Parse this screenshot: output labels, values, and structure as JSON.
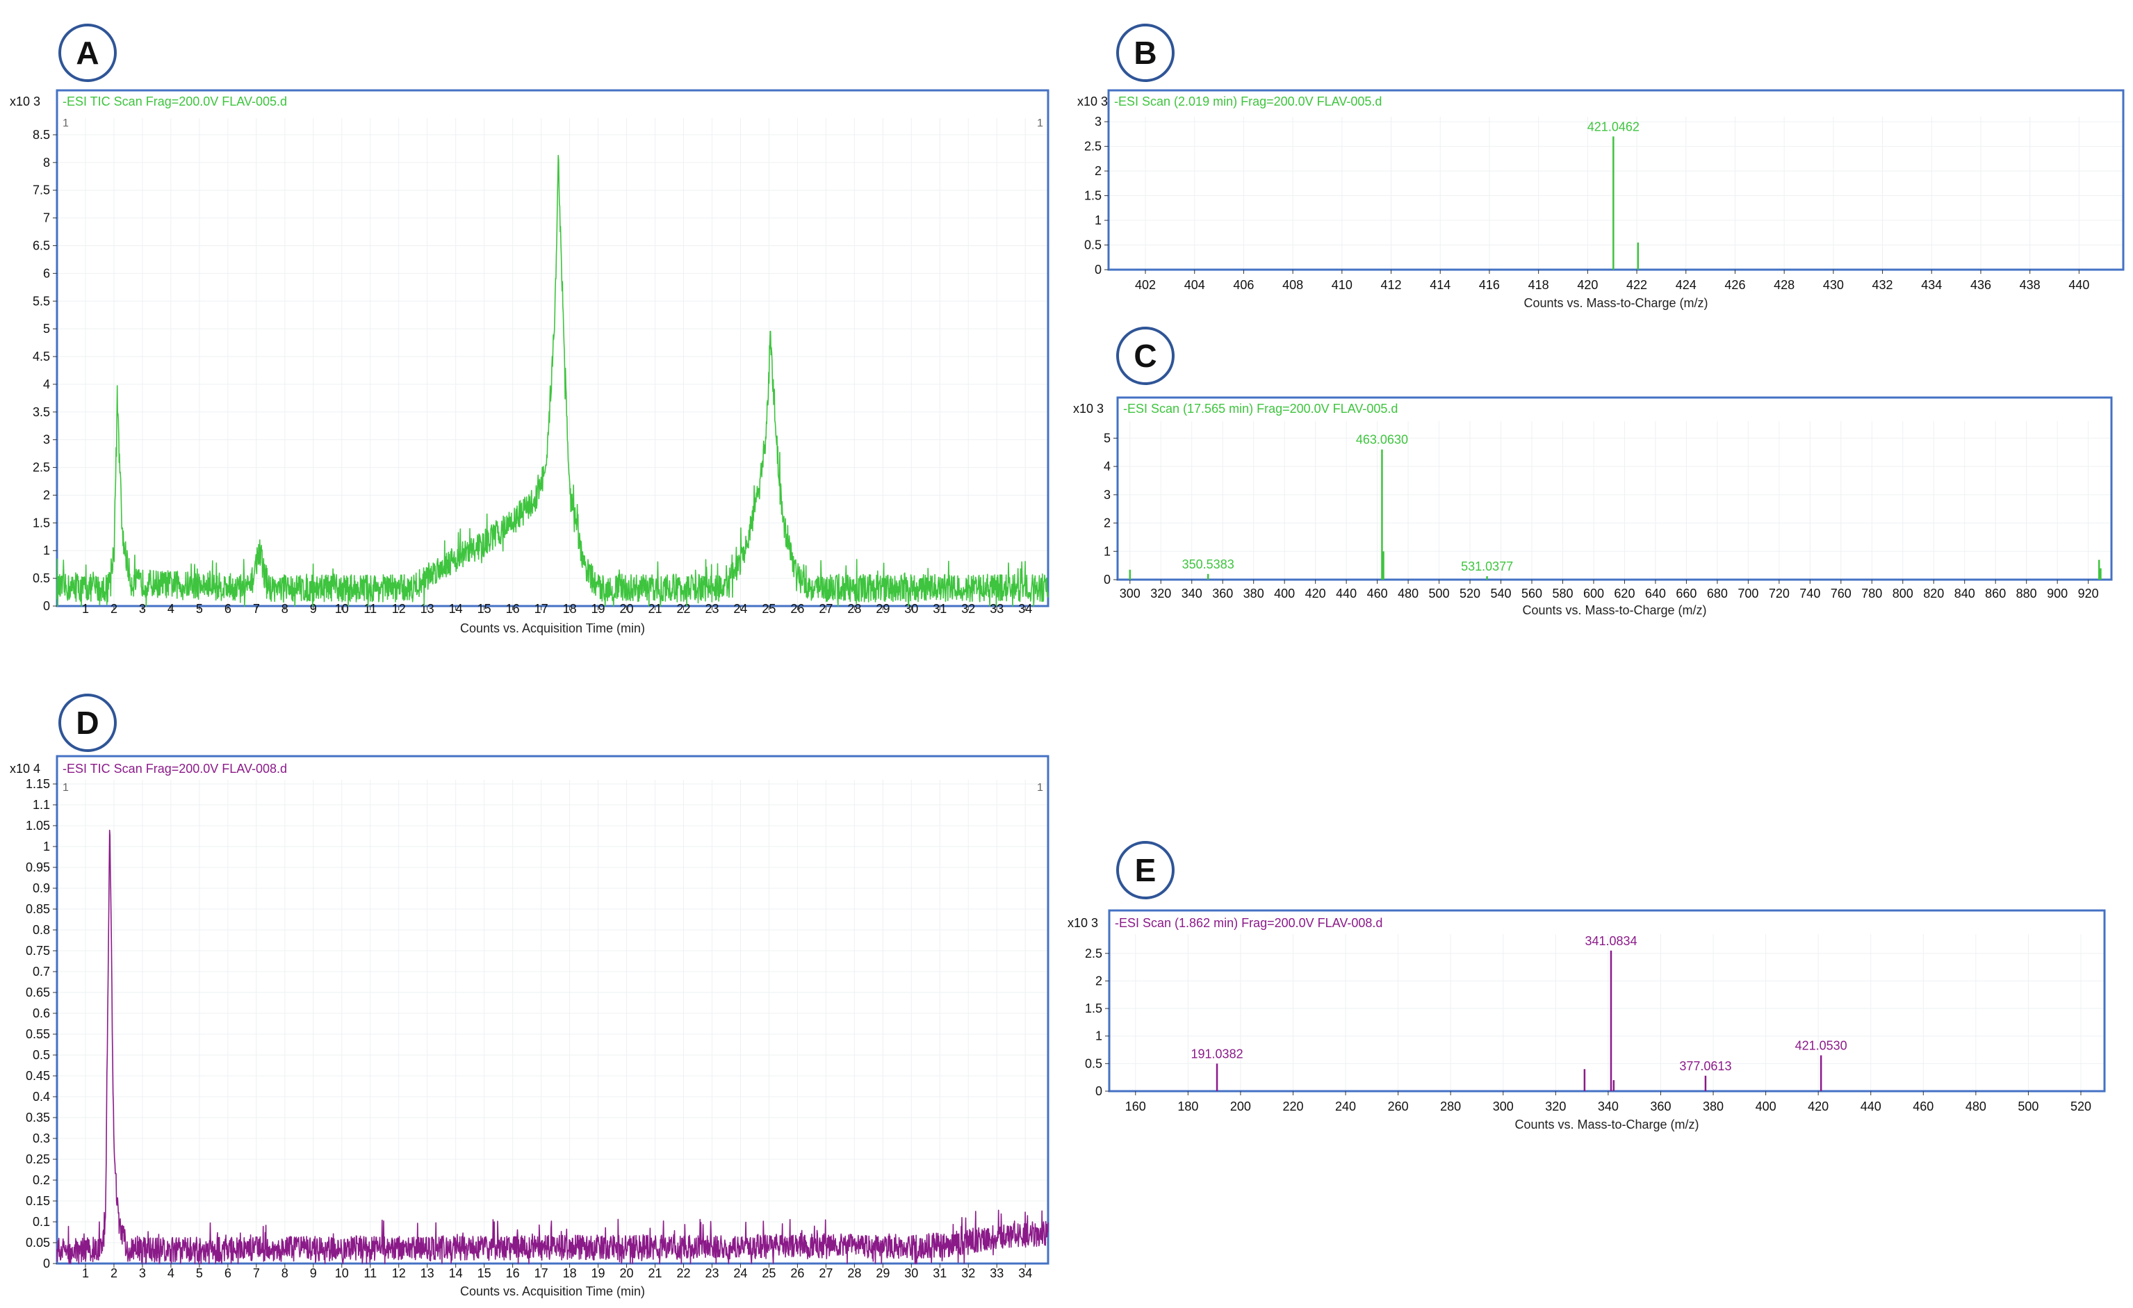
{
  "panels": [
    {
      "id": "A",
      "label": "A"
    },
    {
      "id": "B",
      "label": "B"
    },
    {
      "id": "C",
      "label": "C"
    },
    {
      "id": "D",
      "label": "D"
    },
    {
      "id": "E",
      "label": "E"
    }
  ],
  "colors": {
    "green": "#3ec43e",
    "purple": "#8b1a89",
    "frame": "#4472c4",
    "badge": "#2f5597"
  },
  "chart_data": [
    {
      "id": "A",
      "type": "line",
      "title": "-ESI TIC Scan Frag=200.0V FLAV-005.d",
      "multiplier": "x10 3",
      "corner_marks": [
        "1",
        "1"
      ],
      "xlabel": "Counts vs. Acquisition Time (min)",
      "xlim": [
        0,
        34.8
      ],
      "ylim": [
        0,
        8.8
      ],
      "xticks": [
        "1",
        "2",
        "3",
        "4",
        "5",
        "6",
        "7",
        "8",
        "9",
        "10",
        "11",
        "12",
        "13",
        "14",
        "15",
        "16",
        "17",
        "18",
        "19",
        "20",
        "21",
        "22",
        "23",
        "24",
        "25",
        "26",
        "27",
        "28",
        "29",
        "30",
        "31",
        "32",
        "33",
        "34"
      ],
      "yticks": [
        "0",
        "0.5",
        "1",
        "1.5",
        "2",
        "2.5",
        "3",
        "3.5",
        "4",
        "4.5",
        "5",
        "5.5",
        "6",
        "6.5",
        "7",
        "7.5",
        "8",
        "8.5"
      ],
      "noise": 0.25,
      "series": [
        {
          "color": "#3ec43e",
          "points": [
            [
              0,
              0.3
            ],
            [
              1.8,
              0.3
            ],
            [
              2.0,
              1.0
            ],
            [
              2.12,
              3.6
            ],
            [
              2.3,
              1.2
            ],
            [
              2.6,
              0.4
            ],
            [
              6.8,
              0.3
            ],
            [
              7.1,
              1.0
            ],
            [
              7.4,
              0.3
            ],
            [
              12.5,
              0.3
            ],
            [
              13.5,
              0.7
            ],
            [
              15,
              1.1
            ],
            [
              16,
              1.5
            ],
            [
              16.8,
              1.9
            ],
            [
              17.2,
              2.5
            ],
            [
              17.5,
              5.5
            ],
            [
              17.6,
              8.1
            ],
            [
              17.75,
              5.5
            ],
            [
              18.0,
              2.0
            ],
            [
              18.5,
              0.7
            ],
            [
              19,
              0.3
            ],
            [
              23.5,
              0.3
            ],
            [
              24.2,
              1.0
            ],
            [
              24.7,
              2.2
            ],
            [
              24.95,
              3.5
            ],
            [
              25.05,
              4.9
            ],
            [
              25.2,
              3.3
            ],
            [
              25.5,
              1.5
            ],
            [
              26,
              0.5
            ],
            [
              26.5,
              0.3
            ],
            [
              34.8,
              0.3
            ]
          ]
        }
      ]
    },
    {
      "id": "B",
      "type": "bar",
      "title": "-ESI Scan (2.019 min) Frag=200.0V FLAV-005.d",
      "multiplier": "x10 3",
      "xlabel": "Counts vs. Mass-to-Charge (m/z)",
      "xlim": [
        400.5,
        441.8
      ],
      "ylim": [
        0,
        3.1
      ],
      "xticks": [
        "402",
        "404",
        "406",
        "408",
        "410",
        "412",
        "414",
        "416",
        "418",
        "420",
        "422",
        "424",
        "426",
        "428",
        "430",
        "432",
        "434",
        "436",
        "438",
        "440"
      ],
      "yticks": [
        "0",
        "0.5",
        "1",
        "1.5",
        "2",
        "2.5",
        "3"
      ],
      "peaks": [
        {
          "x": 421.0462,
          "y": 2.7
        },
        {
          "x": 422.05,
          "y": 0.55
        }
      ],
      "labels": [
        {
          "x": 421.0462,
          "y": 2.7,
          "text": "421.0462"
        }
      ]
    },
    {
      "id": "C",
      "type": "bar",
      "title": "-ESI Scan (17.565 min) Frag=200.0V FLAV-005.d",
      "multiplier": "x10 3",
      "xlabel": "Counts vs. Mass-to-Charge (m/z)",
      "xlim": [
        292,
        935
      ],
      "ylim": [
        0,
        5.6
      ],
      "xticks": [
        "300",
        "320",
        "340",
        "360",
        "380",
        "400",
        "420",
        "440",
        "460",
        "480",
        "500",
        "520",
        "540",
        "560",
        "580",
        "600",
        "620",
        "640",
        "660",
        "680",
        "700",
        "720",
        "740",
        "760",
        "780",
        "800",
        "820",
        "840",
        "860",
        "880",
        "900",
        "920"
      ],
      "yticks": [
        "0",
        "1",
        "2",
        "3",
        "4",
        "5"
      ],
      "peaks": [
        {
          "x": 300,
          "y": 0.35
        },
        {
          "x": 350.5383,
          "y": 0.2
        },
        {
          "x": 463.063,
          "y": 4.6
        },
        {
          "x": 464.0,
          "y": 1.0
        },
        {
          "x": 531.0377,
          "y": 0.12
        },
        {
          "x": 927,
          "y": 0.7
        },
        {
          "x": 928,
          "y": 0.4
        }
      ],
      "labels": [
        {
          "x": 350.5383,
          "y": 0.2,
          "text": "350.5383"
        },
        {
          "x": 463.063,
          "y": 4.6,
          "text": "463.0630"
        },
        {
          "x": 531.0377,
          "y": 0.12,
          "text": "531.0377"
        }
      ]
    },
    {
      "id": "D",
      "type": "line",
      "title": "-ESI TIC Scan Frag=200.0V FLAV-008.d",
      "multiplier": "x10 4",
      "corner_marks": [
        "1",
        "1"
      ],
      "xlabel": "Counts vs. Acquisition Time (min)",
      "xlim": [
        0,
        34.8
      ],
      "ylim": [
        0,
        1.16
      ],
      "xticks": [
        "1",
        "2",
        "3",
        "4",
        "5",
        "6",
        "7",
        "8",
        "9",
        "10",
        "11",
        "12",
        "13",
        "14",
        "15",
        "16",
        "17",
        "18",
        "19",
        "20",
        "21",
        "22",
        "23",
        "24",
        "25",
        "26",
        "27",
        "28",
        "29",
        "30",
        "31",
        "32",
        "33",
        "34"
      ],
      "yticks": [
        "0",
        "0.05",
        "0.1",
        "0.15",
        "0.2",
        "0.25",
        "0.3",
        "0.35",
        "0.4",
        "0.45",
        "0.5",
        "0.55",
        "0.6",
        "0.65",
        "0.7",
        "0.75",
        "0.8",
        "0.85",
        "0.9",
        "0.95",
        "1",
        "1.05",
        "1.1",
        "1.15"
      ],
      "noise": 0.03,
      "series": [
        {
          "color": "#8b1a89",
          "points": [
            [
              0,
              0.03
            ],
            [
              1.5,
              0.03
            ],
            [
              1.7,
              0.08
            ],
            [
              1.78,
              0.6
            ],
            [
              1.85,
              1.06
            ],
            [
              1.92,
              0.7
            ],
            [
              2.0,
              0.25
            ],
            [
              2.2,
              0.08
            ],
            [
              2.5,
              0.03
            ],
            [
              31,
              0.04
            ],
            [
              33,
              0.06
            ],
            [
              34.8,
              0.07
            ]
          ]
        }
      ]
    },
    {
      "id": "E",
      "type": "bar",
      "title": "-ESI Scan (1.862 min) Frag=200.0V FLAV-008.d",
      "multiplier": "x10 3",
      "xlabel": "Counts vs. Mass-to-Charge (m/z)",
      "xlim": [
        150,
        529
      ],
      "ylim": [
        0,
        2.85
      ],
      "xticks": [
        "160",
        "180",
        "200",
        "220",
        "240",
        "260",
        "280",
        "300",
        "320",
        "340",
        "360",
        "380",
        "400",
        "420",
        "440",
        "460",
        "480",
        "500",
        "520"
      ],
      "yticks": [
        "0",
        "0.5",
        "1",
        "1.5",
        "2",
        "2.5"
      ],
      "peaks": [
        {
          "x": 191.0382,
          "y": 0.5
        },
        {
          "x": 331,
          "y": 0.4
        },
        {
          "x": 341.0834,
          "y": 2.55
        },
        {
          "x": 342.1,
          "y": 0.2
        },
        {
          "x": 377.0613,
          "y": 0.28
        },
        {
          "x": 421.053,
          "y": 0.65
        }
      ],
      "labels": [
        {
          "x": 191.0382,
          "y": 0.5,
          "text": "191.0382"
        },
        {
          "x": 341.0834,
          "y": 2.55,
          "text": "341.0834"
        },
        {
          "x": 377.0613,
          "y": 0.28,
          "text": "377.0613"
        },
        {
          "x": 421.053,
          "y": 0.65,
          "text": "421.0530"
        }
      ]
    }
  ]
}
